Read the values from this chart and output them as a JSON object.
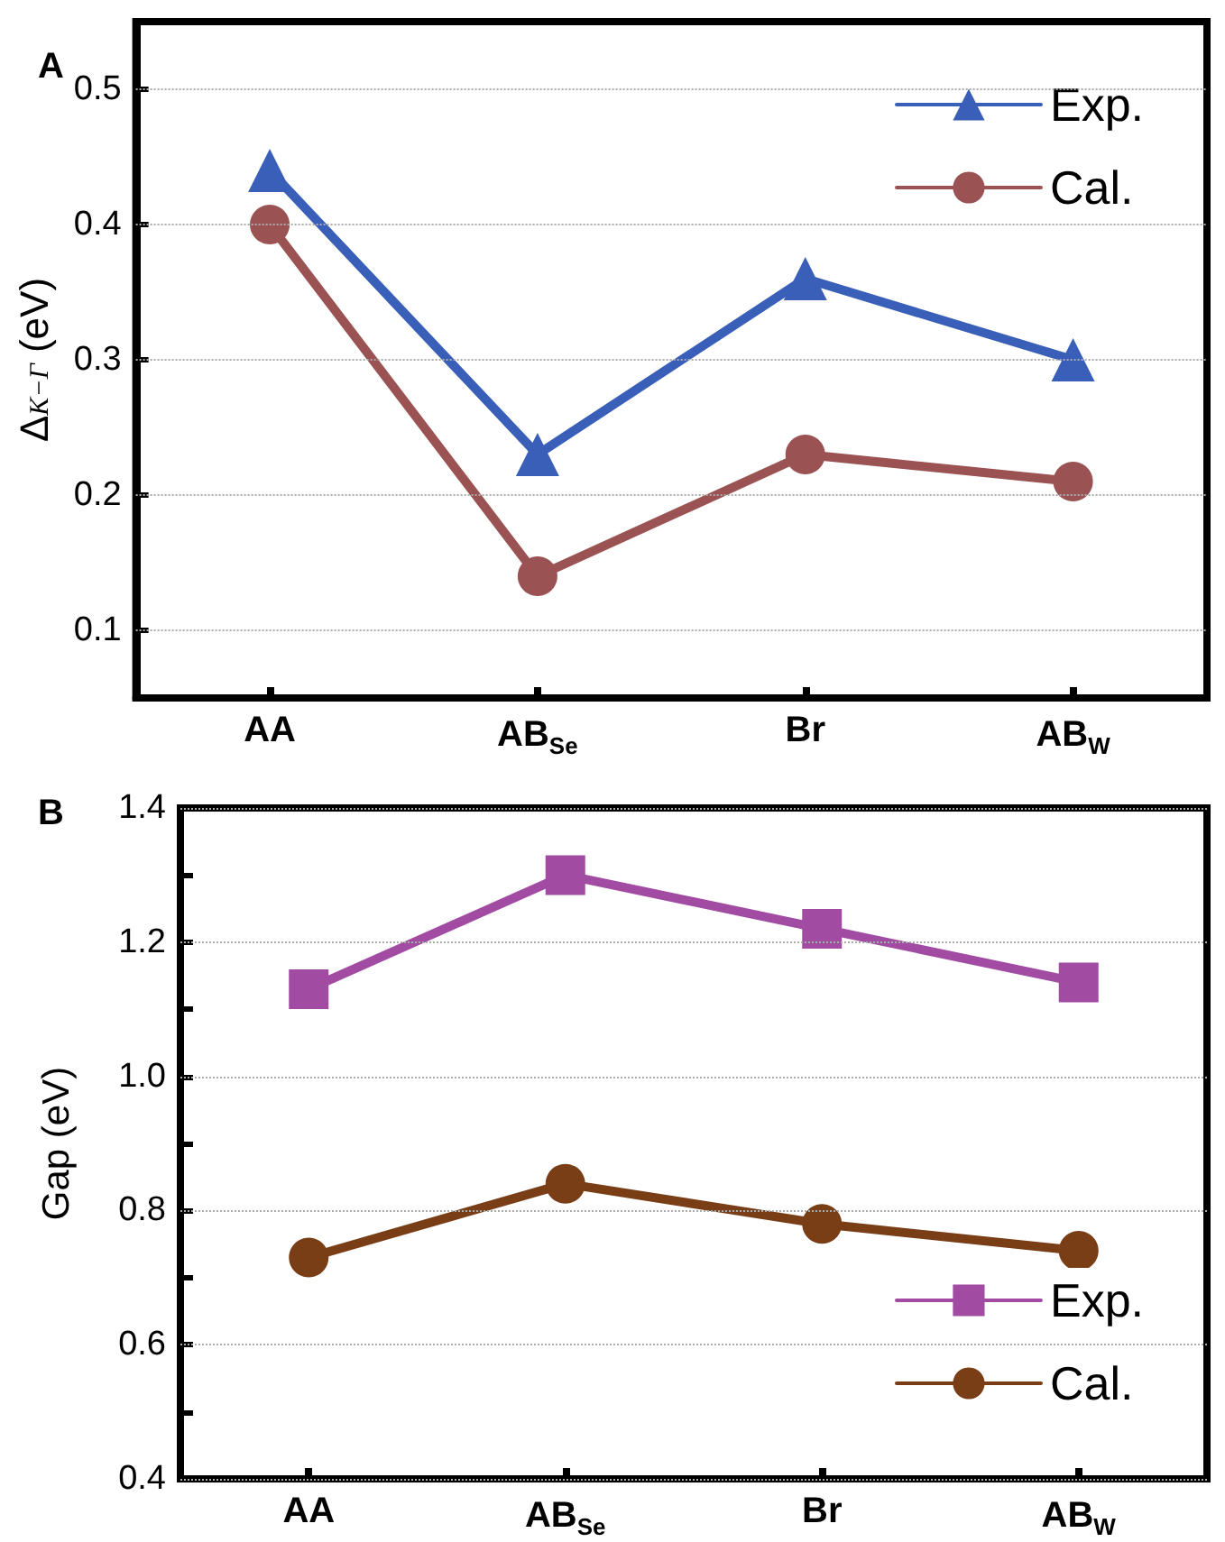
{
  "chart_data": [
    {
      "type": "line",
      "title": "A",
      "ylabel": "Δ$_{K−Γ}$ (eV)",
      "categories": [
        "AA",
        "AB$_{Se}$",
        "Br",
        "AB$_{W}$"
      ],
      "series": [
        {
          "name": "Exp.",
          "color": "#3a5fb8",
          "marker": "triangle",
          "values": [
            0.44,
            0.23,
            0.36,
            0.3
          ]
        },
        {
          "name": "Cal.",
          "color": "#9a5252",
          "marker": "circle",
          "values": [
            0.4,
            0.14,
            0.23,
            0.21
          ]
        }
      ],
      "ylim": [
        0.05,
        0.55
      ],
      "yticks": [
        0.1,
        0.2,
        0.3,
        0.4,
        0.5
      ],
      "grid": "y",
      "legend": "top right",
      "line_style": "solid"
    },
    {
      "type": "line",
      "title": "B",
      "ylabel": "Gap (eV)",
      "categories": [
        "AA",
        "AB$_{Se}$",
        "Br",
        "AB$_{W}$"
      ],
      "series": [
        {
          "name": "Exp.",
          "color": "#a24ba2",
          "marker": "square",
          "values": [
            1.13,
            1.3,
            1.22,
            1.14
          ]
        },
        {
          "name": "Cal.",
          "color": "#7a3e17",
          "marker": "circle",
          "values": [
            0.73,
            0.84,
            0.78,
            0.74
          ]
        }
      ],
      "ylim": [
        0.4,
        1.4
      ],
      "yticks": [
        0.4,
        {
          "value": 0.5,
          "label": null
        },
        0.6,
        {
          "value": 0.7,
          "label": null
        },
        0.8,
        {
          "value": 0.9,
          "label": null
        },
        {
          "value": 1.0,
          "label": "1.0"
        },
        {
          "value": 1.1,
          "label": null
        },
        1.2,
        {
          "value": 1.3,
          "label": null
        },
        1.4
      ],
      "grid": "y",
      "legend": "bottom right",
      "line_style": "solid"
    }
  ]
}
